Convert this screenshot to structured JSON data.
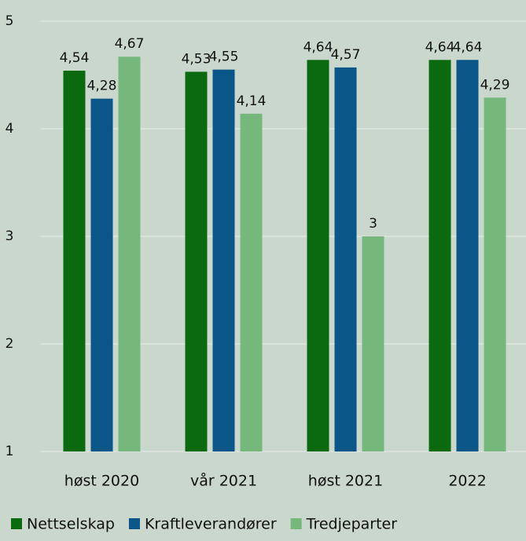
{
  "chart_data": {
    "type": "bar",
    "categories": [
      "høst 2020",
      "vår 2021",
      "høst 2021",
      "2022"
    ],
    "series": [
      {
        "name": "Nettselskap",
        "color": "#0b6a0f",
        "values": [
          4.54,
          4.53,
          4.64,
          4.64
        ],
        "value_labels": [
          "4,54",
          "4,53",
          "4,64",
          "4,64"
        ]
      },
      {
        "name": "Kraftleverandører",
        "color": "#0a5688",
        "values": [
          4.28,
          4.55,
          4.57,
          4.64
        ],
        "value_labels": [
          "4,28",
          "4,55",
          "4,57",
          "4,64"
        ]
      },
      {
        "name": "Tredjeparter",
        "color": "#76b87c",
        "values": [
          4.67,
          4.14,
          3,
          4.29
        ],
        "value_labels": [
          "4,67",
          "4,14",
          "3",
          "4,29"
        ]
      }
    ],
    "ylim": [
      1,
      5
    ],
    "yticks": [
      1,
      2,
      3,
      4,
      5
    ],
    "grid": true,
    "legend": "bottom"
  }
}
